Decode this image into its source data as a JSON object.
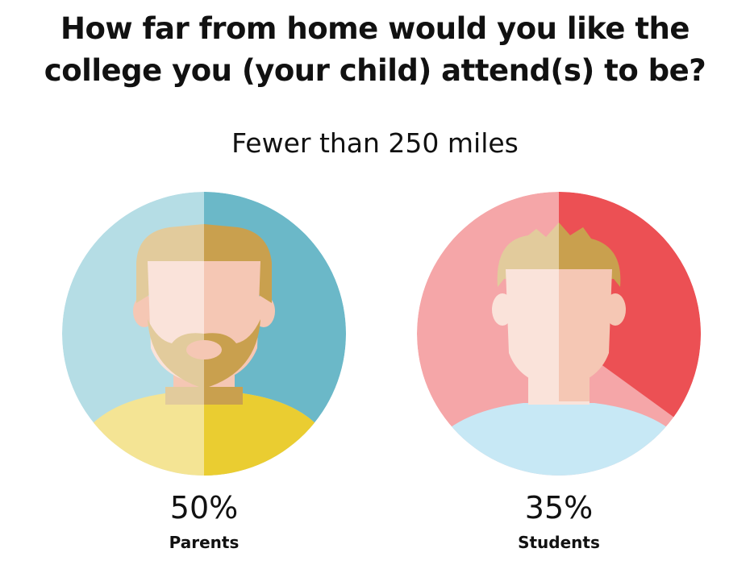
{
  "title_line1": "How far from home would you like the",
  "title_line2": "college you (your child) attend(s) to be?",
  "chart_data": {
    "type": "pie",
    "subtitle": "Fewer than 250 miles",
    "series": [
      {
        "name": "Parents",
        "value": 50,
        "display": "50%",
        "colors": {
          "base": "#b5dde5",
          "highlight": "#6bb8c8"
        }
      },
      {
        "name": "Students",
        "value": 35,
        "display": "35%",
        "colors": {
          "base": "#f5a6a8",
          "highlight": "#ec5054"
        }
      }
    ]
  },
  "colors": {
    "skin": "#fae3da",
    "skin_shade": "#f5c7b4",
    "hair_parent": "#e2cb9c",
    "hair_parent_shade": "#c9a04e",
    "shirt_parent": "#f4e494",
    "shirt_parent_shade": "#eacd31",
    "shirt_student": "#c7e8f5"
  }
}
